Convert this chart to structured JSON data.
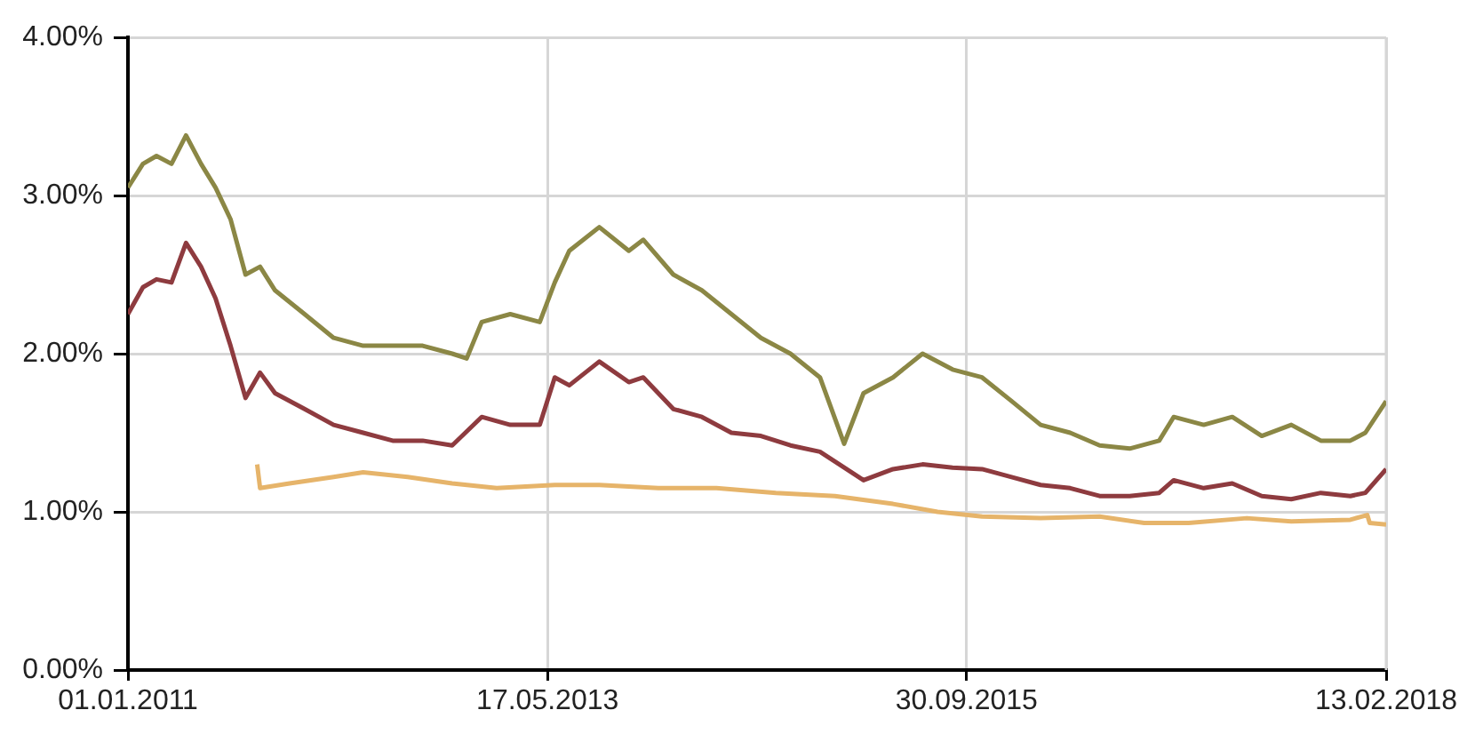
{
  "chart_data": {
    "type": "line",
    "xlim": [
      "2011-01-01",
      "2018-02-13"
    ],
    "xticks": [
      {
        "value": "2011-01-01",
        "label": "01.01.2011"
      },
      {
        "value": "2013-05-17",
        "label": "17.05.2013"
      },
      {
        "value": "2015-09-30",
        "label": "30.09.2015"
      },
      {
        "value": "2018-02-13",
        "label": "13.02.2018"
      }
    ],
    "ylim": [
      0,
      4
    ],
    "yticks": [
      {
        "value": 0,
        "label": "0.00%"
      },
      {
        "value": 1,
        "label": "1.00%"
      },
      {
        "value": 2,
        "label": "2.00%"
      },
      {
        "value": 3,
        "label": "3.00%"
      },
      {
        "value": 4,
        "label": "4.00%"
      }
    ],
    "grid": true,
    "legend": false,
    "marker": "none",
    "line_style": "solid",
    "series": [
      {
        "color": "#8b8745",
        "x": [
          "2011-01",
          "2011-02",
          "2011-03",
          "2011-04",
          "2011-05",
          "2011-06",
          "2011-07",
          "2011-08",
          "2011-09",
          "2011-10",
          "2011-11",
          "2012-01",
          "2012-03",
          "2012-05",
          "2012-07",
          "2012-09",
          "2012-11",
          "2012-12",
          "2013-01",
          "2013-03",
          "2013-05",
          "2013-06",
          "2013-07",
          "2013-09",
          "2013-11",
          "2013-12",
          "2014-02",
          "2014-04",
          "2014-06",
          "2014-08",
          "2014-10",
          "2014-12",
          "2015-01-20",
          "2015-03",
          "2015-05",
          "2015-07",
          "2015-09",
          "2015-11",
          "2016-01",
          "2016-03",
          "2016-05",
          "2016-07",
          "2016-09",
          "2016-11",
          "2016-12",
          "2017-02",
          "2017-04",
          "2017-06",
          "2017-08",
          "2017-10",
          "2017-12",
          "2018-01",
          "2018-02-13"
        ],
        "values": [
          3.05,
          3.2,
          3.25,
          3.2,
          3.38,
          3.2,
          3.05,
          2.85,
          2.5,
          2.55,
          2.4,
          2.25,
          2.1,
          2.05,
          2.05,
          2.05,
          2.0,
          1.97,
          2.2,
          2.25,
          2.2,
          2.45,
          2.65,
          2.8,
          2.65,
          2.72,
          2.5,
          2.4,
          2.25,
          2.1,
          2.0,
          1.85,
          1.43,
          1.75,
          1.85,
          2.0,
          1.9,
          1.85,
          1.7,
          1.55,
          1.5,
          1.42,
          1.4,
          1.45,
          1.6,
          1.55,
          1.6,
          1.48,
          1.55,
          1.45,
          1.45,
          1.5,
          1.7
        ]
      },
      {
        "color": "#8e3b3f",
        "x": [
          "2011-01",
          "2011-02",
          "2011-03",
          "2011-04",
          "2011-05",
          "2011-06",
          "2011-07",
          "2011-08",
          "2011-09",
          "2011-10",
          "2011-11",
          "2012-01",
          "2012-03",
          "2012-05",
          "2012-07",
          "2012-09",
          "2012-11",
          "2013-01",
          "2013-03",
          "2013-05",
          "2013-06",
          "2013-07",
          "2013-09",
          "2013-11",
          "2013-12",
          "2014-02",
          "2014-04",
          "2014-06",
          "2014-08",
          "2014-10",
          "2014-12",
          "2015-01-20",
          "2015-03",
          "2015-05",
          "2015-07",
          "2015-09",
          "2015-11",
          "2016-01",
          "2016-03",
          "2016-05",
          "2016-07",
          "2016-09",
          "2016-11",
          "2016-12",
          "2017-02",
          "2017-04",
          "2017-06",
          "2017-08",
          "2017-10",
          "2017-12",
          "2018-01",
          "2018-02-13"
        ],
        "values": [
          2.25,
          2.42,
          2.47,
          2.45,
          2.7,
          2.55,
          2.35,
          2.05,
          1.72,
          1.88,
          1.75,
          1.65,
          1.55,
          1.5,
          1.45,
          1.45,
          1.42,
          1.6,
          1.55,
          1.55,
          1.85,
          1.8,
          1.95,
          1.82,
          1.85,
          1.65,
          1.6,
          1.5,
          1.48,
          1.42,
          1.38,
          1.28,
          1.2,
          1.27,
          1.3,
          1.28,
          1.27,
          1.22,
          1.17,
          1.15,
          1.1,
          1.1,
          1.12,
          1.2,
          1.15,
          1.18,
          1.1,
          1.08,
          1.12,
          1.1,
          1.12,
          1.27
        ]
      },
      {
        "color": "#e6b46a",
        "x": [
          "2011-09-25",
          "2011-10-01",
          "2011-12",
          "2012-03",
          "2012-05",
          "2012-08",
          "2012-11",
          "2013-02",
          "2013-06",
          "2013-09",
          "2014-01",
          "2014-05",
          "2014-09",
          "2015-01",
          "2015-05",
          "2015-08",
          "2015-11",
          "2016-03",
          "2016-07",
          "2016-10",
          "2017-01",
          "2017-05",
          "2017-08",
          "2017-12",
          "2018-01-05",
          "2018-01-10",
          "2018-02-13"
        ],
        "values": [
          1.3,
          1.15,
          1.18,
          1.22,
          1.25,
          1.22,
          1.18,
          1.15,
          1.17,
          1.17,
          1.15,
          1.15,
          1.12,
          1.1,
          1.05,
          1.0,
          0.97,
          0.96,
          0.97,
          0.93,
          0.93,
          0.96,
          0.94,
          0.95,
          0.98,
          0.93,
          0.92
        ]
      }
    ]
  }
}
